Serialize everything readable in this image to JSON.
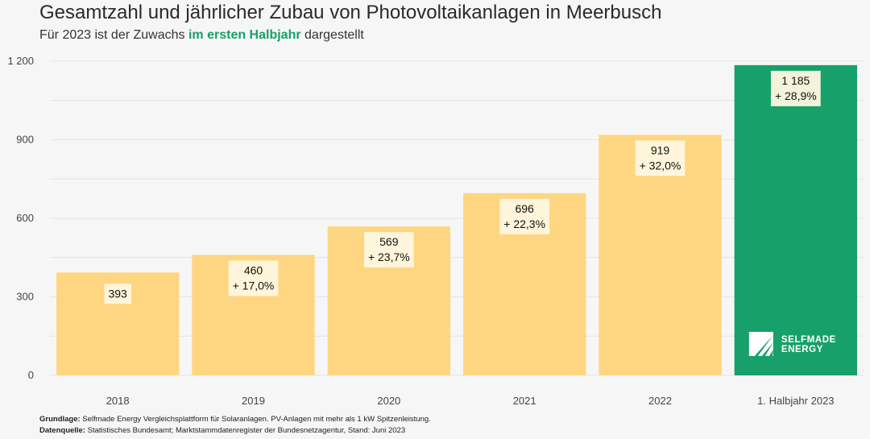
{
  "header": {
    "title": "Gesamtzahl und jährlicher Zubau von Photovoltaikanlagen in Meerbusch",
    "subtitle_prefix": "Für 2023 ist der Zuwachs ",
    "subtitle_highlight": "im ersten Halbjahr",
    "subtitle_suffix": " dargestellt"
  },
  "footer": {
    "basis_label": "Grundlage:",
    "basis_text": " Selfmade Energy Vergleichsplattform für Solaranlagen. PV-Anlagen mit mehr als 1 kW Spitzenleistung.",
    "source_label": "Datenquelle:",
    "source_text": " Statistisches Bundesamt; Marktstammdatenregister der Bundesnetzagentur, Stand: Juni 2023"
  },
  "logo": {
    "line1": "SELFMADE",
    "line2": "ENERGY"
  },
  "colors": {
    "bar": "#fed682",
    "highlight_bar": "#17a06a",
    "highlight_text": "#17a06a",
    "grid": "#e4e4e4",
    "background": "#f6f6f6"
  },
  "chart_data": {
    "type": "bar",
    "title": "Gesamtzahl und jährlicher Zubau von Photovoltaikanlagen in Meerbusch",
    "categories": [
      "2018",
      "2019",
      "2020",
      "2021",
      "2022",
      "1. Halbjahr 2023"
    ],
    "values": [
      393,
      460,
      569,
      696,
      919,
      1185
    ],
    "value_labels": [
      "393",
      "460",
      "569",
      "696",
      "919",
      "1 185"
    ],
    "growth_labels": [
      "",
      "+ 17,0%",
      "+ 23,7%",
      "+ 22,3%",
      "+ 32,0%",
      "+ 28,9%"
    ],
    "highlight_index": 5,
    "ylim": [
      0,
      1200
    ],
    "yticks": [
      0,
      300,
      600,
      900,
      1200
    ],
    "ytick_labels": [
      "0",
      "300",
      "600",
      "900",
      "1 200"
    ],
    "grid": true,
    "xlabel": "",
    "ylabel": ""
  }
}
